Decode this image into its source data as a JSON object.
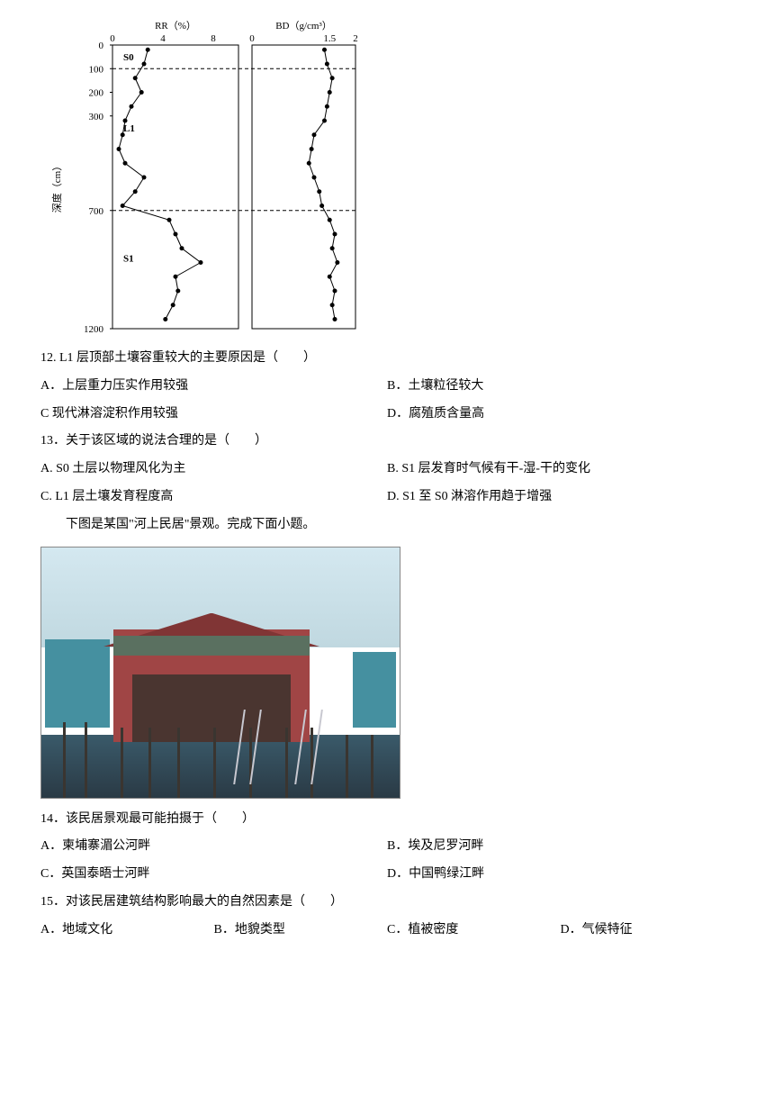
{
  "chart": {
    "type": "line",
    "y_axis_label": "深度（cm）",
    "rr_title": "RR（%）",
    "bd_title": "BD（g/cm³）",
    "rr_xlim": [
      0,
      10
    ],
    "rr_ticks": [
      0,
      4,
      8
    ],
    "bd_xlim": [
      0,
      2.0
    ],
    "bd_ticks": [
      0,
      1.5,
      2.0
    ],
    "ylim": [
      0,
      1200
    ],
    "y_ticks": [
      0,
      100,
      200,
      300,
      700,
      1200
    ],
    "layers": [
      {
        "label": "S0",
        "depth": 50
      },
      {
        "label": "L1",
        "depth": 350
      },
      {
        "label": "S1",
        "depth": 900
      }
    ],
    "divider_depths": [
      100,
      700
    ],
    "rr_data": [
      {
        "depth": 20,
        "val": 2.8
      },
      {
        "depth": 80,
        "val": 2.5
      },
      {
        "depth": 140,
        "val": 1.8
      },
      {
        "depth": 200,
        "val": 2.3
      },
      {
        "depth": 260,
        "val": 1.5
      },
      {
        "depth": 320,
        "val": 1.0
      },
      {
        "depth": 380,
        "val": 0.8
      },
      {
        "depth": 440,
        "val": 0.5
      },
      {
        "depth": 500,
        "val": 1.0
      },
      {
        "depth": 560,
        "val": 2.5
      },
      {
        "depth": 620,
        "val": 1.8
      },
      {
        "depth": 680,
        "val": 0.8
      },
      {
        "depth": 740,
        "val": 4.5
      },
      {
        "depth": 800,
        "val": 5.0
      },
      {
        "depth": 860,
        "val": 5.5
      },
      {
        "depth": 920,
        "val": 7.0
      },
      {
        "depth": 980,
        "val": 5.0
      },
      {
        "depth": 1040,
        "val": 5.2
      },
      {
        "depth": 1100,
        "val": 4.8
      },
      {
        "depth": 1160,
        "val": 4.2
      }
    ],
    "bd_data": [
      {
        "depth": 20,
        "val": 1.4
      },
      {
        "depth": 80,
        "val": 1.45
      },
      {
        "depth": 140,
        "val": 1.55
      },
      {
        "depth": 200,
        "val": 1.5
      },
      {
        "depth": 260,
        "val": 1.45
      },
      {
        "depth": 320,
        "val": 1.4
      },
      {
        "depth": 380,
        "val": 1.2
      },
      {
        "depth": 440,
        "val": 1.15
      },
      {
        "depth": 500,
        "val": 1.1
      },
      {
        "depth": 560,
        "val": 1.2
      },
      {
        "depth": 620,
        "val": 1.3
      },
      {
        "depth": 680,
        "val": 1.35
      },
      {
        "depth": 740,
        "val": 1.5
      },
      {
        "depth": 800,
        "val": 1.6
      },
      {
        "depth": 860,
        "val": 1.55
      },
      {
        "depth": 920,
        "val": 1.65
      },
      {
        "depth": 980,
        "val": 1.5
      },
      {
        "depth": 1040,
        "val": 1.6
      },
      {
        "depth": 1100,
        "val": 1.55
      },
      {
        "depth": 1160,
        "val": 1.6
      }
    ],
    "line_color": "#000000",
    "marker_color": "#000000",
    "background": "#ffffff",
    "font_size": 11
  },
  "q12": {
    "text": "12. L1 层顶部土壤容重较大的主要原因是（　　）",
    "A": "A．上层重力压实作用较强",
    "B": "B．土壤粒径较大",
    "C": "C  现代淋溶淀积作用较强",
    "D": "D．腐殖质含量高"
  },
  "q13": {
    "text": "13．关于该区域的说法合理的是（　　）",
    "A": "A. S0 土层以物理风化为主",
    "B": "B. S1 层发育时气候有干-湿-干的变化",
    "C": "C. L1 层土壤发育程度高",
    "D": "D. S1 至 S0 淋溶作用趋于增强"
  },
  "intro2": "下图是某国\"河上民居\"景观。完成下面小题。",
  "photo": {
    "sky_color": "#d4e8f0",
    "water_color": "#2a3a45",
    "house_color": "#a04545",
    "roof_color": "#803535",
    "side_color": "#4590a0",
    "stilt_color": "#3a3530"
  },
  "q14": {
    "text": "14．该民居景观最可能拍摄于（　　）",
    "A": "A．柬埔寨湄公河畔",
    "B": "B．埃及尼罗河畔",
    "C": "C．英国泰晤士河畔",
    "D": "D．中国鸭绿江畔"
  },
  "q15": {
    "text": "15．对该民居建筑结构影响最大的自然因素是（　　）",
    "A": "A．地域文化",
    "B": "B．地貌类型",
    "C": "C．植被密度",
    "D": "D．气候特征"
  }
}
